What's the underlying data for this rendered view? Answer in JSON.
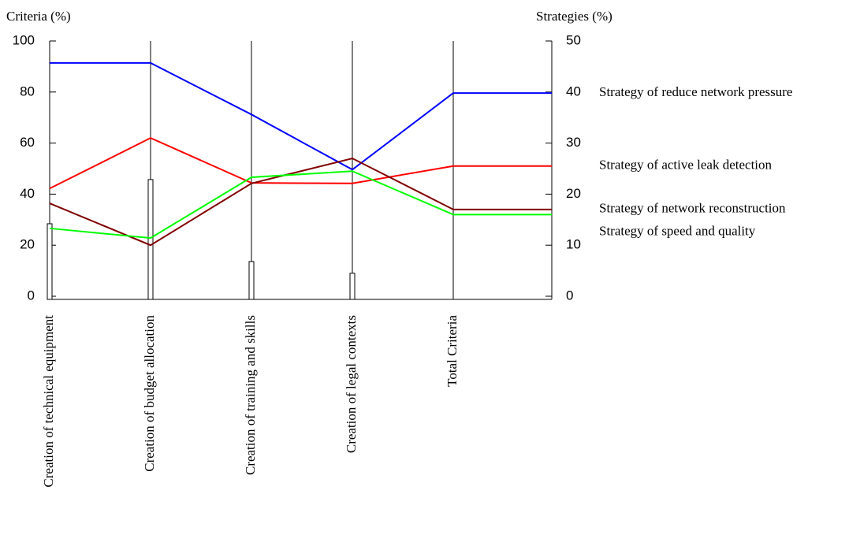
{
  "chart_data": {
    "type": "line",
    "ylabel": "Criteria (%)",
    "y2label": "Strategies (%)",
    "categories": [
      "Creation of technical equipment",
      "Creation of budget allocation",
      "Creation of training and skills",
      "Creation of legal contexts",
      "Total Criteria"
    ],
    "ylim": [
      0,
      100
    ],
    "yticks": [
      0,
      20,
      40,
      60,
      80,
      100
    ],
    "y2lim": [
      0,
      50
    ],
    "y2ticks": [
      0,
      10,
      20,
      30,
      40,
      50
    ],
    "series": [
      {
        "type": "bar",
        "color": "#ffffff",
        "values": [
          28.4,
          45.7,
          13.6,
          9,
          null
        ]
      },
      {
        "name": "Strategy of reduce network pressure",
        "color": "#0000ff",
        "axis": "y2",
        "values": [
          45.7,
          45.7,
          35.6,
          24.8,
          39.8
        ]
      },
      {
        "name": "Strategy of active leak detection",
        "color": "#ff0000",
        "axis": "y2",
        "values": [
          21.1,
          31,
          22.2,
          22.1,
          25.5
        ]
      },
      {
        "name": "Strategy of network reconstruction",
        "color": "#800000",
        "axis": "y2",
        "values": [
          18.2,
          10,
          22.1,
          27,
          17
        ]
      },
      {
        "name": "Strategy of speed and quality",
        "color": "#00ff00",
        "axis": "y2",
        "values": [
          13.3,
          11.4,
          23.3,
          24.5,
          16
        ]
      }
    ]
  }
}
